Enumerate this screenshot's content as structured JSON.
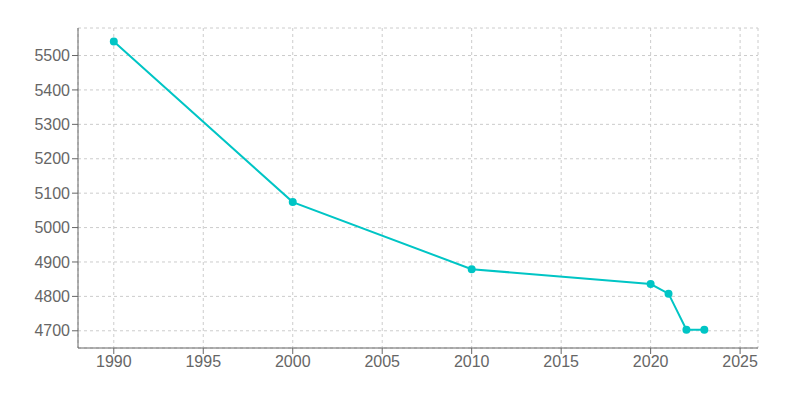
{
  "chart_data": {
    "type": "line",
    "x": [
      1990,
      2000,
      2010,
      2020,
      2021,
      2022,
      2023
    ],
    "values": [
      5541,
      5074,
      4879,
      4836,
      4808,
      4703,
      4703
    ],
    "color": "#00C5C5",
    "marker": "circle",
    "xlim": [
      1988,
      2026
    ],
    "xticks": [
      1990,
      1995,
      2000,
      2005,
      2010,
      2015,
      2020,
      2025
    ],
    "ylim": [
      4650,
      5580
    ],
    "yticks": [
      4700,
      4800,
      4900,
      5000,
      5100,
      5200,
      5300,
      5400,
      5500
    ],
    "grid": true
  }
}
